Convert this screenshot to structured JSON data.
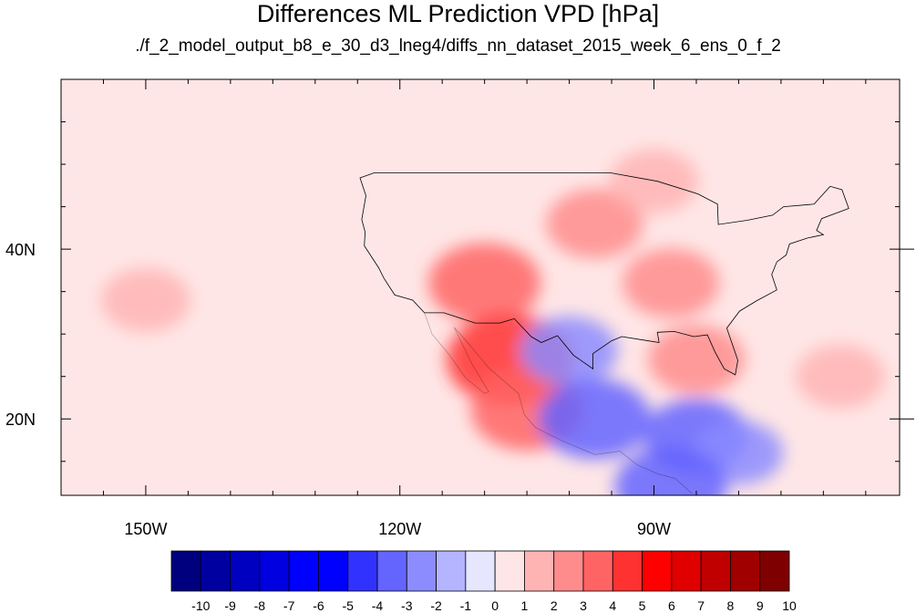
{
  "chart_data": {
    "type": "heatmap",
    "title": "Differences ML Prediction VPD [hPa]",
    "subtitle": "./f_2_model_output_b8_e_30_d3_lneg4/diffs_nn_dataset_2015_week_6_ens_0_f_2",
    "x_range": [
      -160,
      -61
    ],
    "y_range": [
      11,
      60
    ],
    "x_ticks": [
      {
        "value": -150,
        "label": "150W"
      },
      {
        "value": -120,
        "label": "120W"
      },
      {
        "value": -90,
        "label": "90W"
      }
    ],
    "y_ticks": [
      {
        "value": 40,
        "label": "40N"
      },
      {
        "value": 20,
        "label": "20N"
      }
    ],
    "colorbar": {
      "labels": [
        "-10",
        "-9",
        "-8",
        "-7",
        "-6",
        "-5",
        "-4",
        "-3",
        "-2",
        "-1",
        "0",
        "1",
        "2",
        "3",
        "4",
        "5",
        "6",
        "7",
        "8",
        "9",
        "10"
      ],
      "colors": [
        "#00007f",
        "#0000a0",
        "#0000c0",
        "#0000e0",
        "#0000ff",
        "#0000ff",
        "#3232ff",
        "#6464ff",
        "#8c8cff",
        "#b4b4ff",
        "#e6e6ff",
        "#ffe6e6",
        "#ffb4b4",
        "#ff8c8c",
        "#ff6464",
        "#ff3232",
        "#ff0000",
        "#e00000",
        "#c00000",
        "#a00000",
        "#7f0000"
      ]
    },
    "field": {
      "background_value": 0.5,
      "anomalies": [
        {
          "lon": -110,
          "lat": 36,
          "value": 3
        },
        {
          "lon": -107,
          "lat": 27,
          "value": 4
        },
        {
          "lon": -105,
          "lat": 21,
          "value": 3
        },
        {
          "lon": -97,
          "lat": 43,
          "value": 2
        },
        {
          "lon": -88,
          "lat": 36,
          "value": 2
        },
        {
          "lon": -90,
          "lat": 48,
          "value": 1.5
        },
        {
          "lon": -85,
          "lat": 27,
          "value": 2
        },
        {
          "lon": -150,
          "lat": 34,
          "value": 1.5
        },
        {
          "lon": -68,
          "lat": 25,
          "value": 1.5
        },
        {
          "lon": -100,
          "lat": 28,
          "value": -2
        },
        {
          "lon": -97,
          "lat": 20,
          "value": -3
        },
        {
          "lon": -85,
          "lat": 18,
          "value": -2.5
        },
        {
          "lon": -80,
          "lat": 16,
          "value": -1.5
        },
        {
          "lon": -88,
          "lat": 12,
          "value": -3
        }
      ]
    },
    "boundary_color": "#000000"
  }
}
